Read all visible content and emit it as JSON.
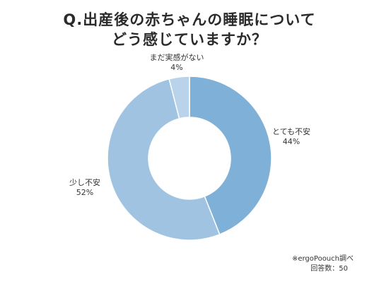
{
  "chart_data": {
    "type": "pie",
    "title_lines": [
      "Q.出産後の赤ちゃんの睡眠についてどう感じていますか？"
    ],
    "title_line1": "Q.出産後の赤ちゃんの睡眠について",
    "title_line2": "どう感じていますか？",
    "slices": [
      {
        "label": "とても不安",
        "value": 44,
        "value_label": "44%",
        "color": "#7fb0d7"
      },
      {
        "label": "少し不安",
        "value": 52,
        "value_label": "52%",
        "color": "#9fc3e1"
      },
      {
        "label": "まだ実感がない",
        "value": 4,
        "value_label": "4%",
        "color": "#b8d3ea"
      }
    ],
    "donut": true
  },
  "source": {
    "line1": "※ergoPoouch調べ",
    "line2": "回答数：50"
  }
}
